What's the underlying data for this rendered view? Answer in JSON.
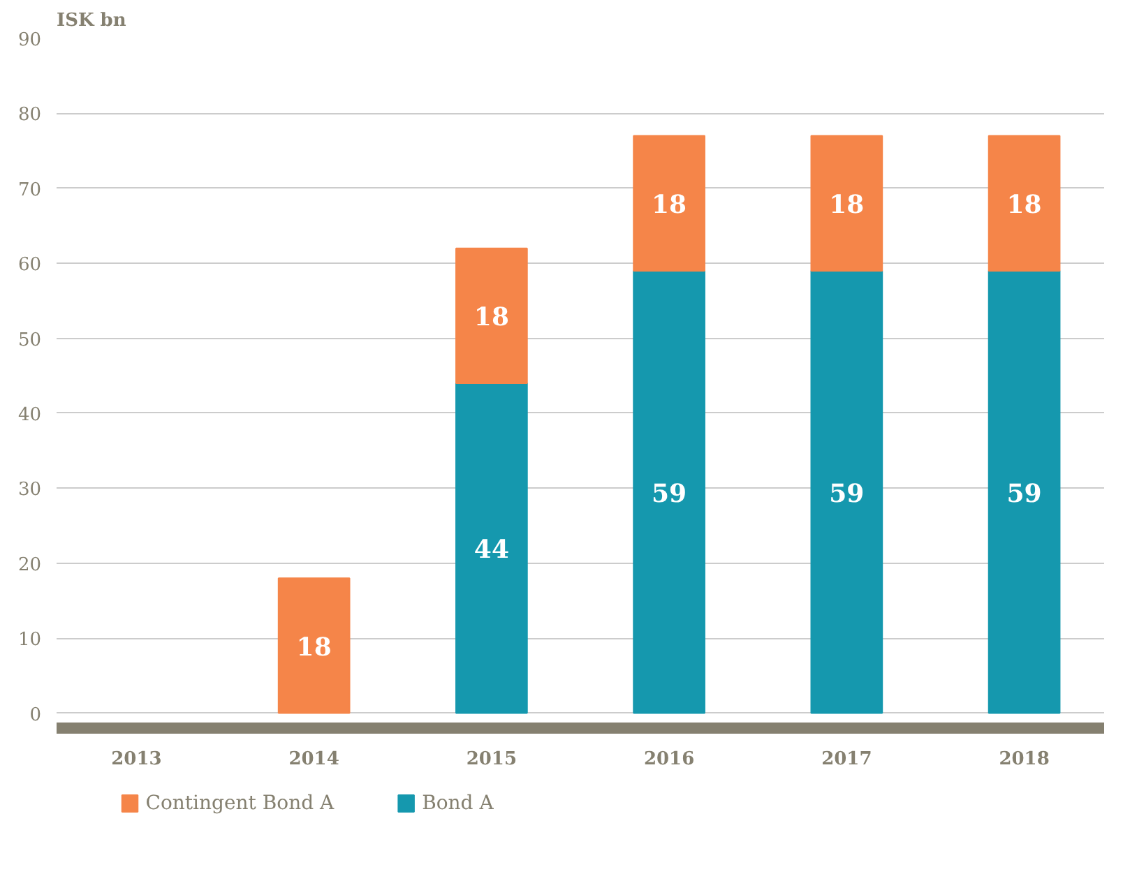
{
  "chart_data": {
    "type": "bar",
    "stacked": true,
    "ylabel": "ISK bn",
    "categories": [
      "2013",
      "2014",
      "2015",
      "2016",
      "2017",
      "2018"
    ],
    "series": [
      {
        "name": "Bond A",
        "color": "#1598ae",
        "values": [
          null,
          null,
          44,
          59,
          59,
          59
        ]
      },
      {
        "name": "Contingent Bond A",
        "color": "#f58549",
        "values": [
          null,
          18,
          18,
          18,
          18,
          18
        ]
      }
    ],
    "ylim": [
      -2,
      90
    ],
    "yticks": [
      0,
      10,
      20,
      30,
      40,
      50,
      60,
      70,
      80,
      90
    ],
    "grid": "y",
    "legend": "bottom left",
    "data_labels": true
  }
}
